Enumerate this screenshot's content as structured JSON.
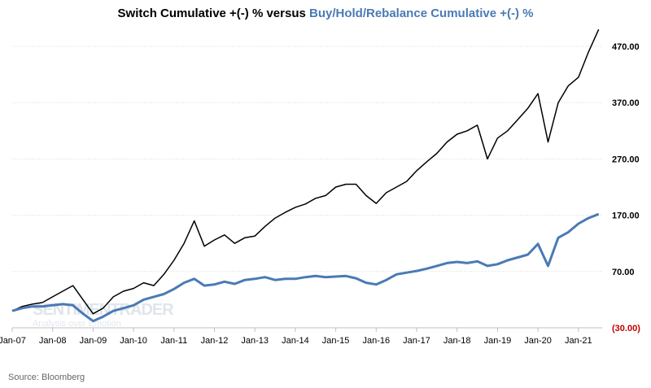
{
  "chart_data": {
    "type": "line",
    "title_part1": "Switch Cumulative +(-) % versus ",
    "title_part2": "Buy/Hold/Rebalance Cumulative +(-) %",
    "source": "Source: Bloomberg",
    "watermark": "SENTIMENTRADER",
    "watermark_sub": "Analysis over Emotion",
    "ylim": [
      -30,
      470
    ],
    "y_ticks": [
      470,
      370,
      270,
      170,
      70,
      -30
    ],
    "y_tick_labels": [
      "470.00",
      "370.00",
      "270.00",
      "170.00",
      "70.00",
      "(30.00)"
    ],
    "negative_label_color": "#c00000",
    "x_tick_labels": [
      "Jan-07",
      "Jan-08",
      "Jan-09",
      "Jan-10",
      "Jan-11",
      "Jan-12",
      "Jan-13",
      "Jan-14",
      "Jan-15",
      "Jan-16",
      "Jan-17",
      "Jan-18",
      "Jan-19",
      "Jan-20",
      "Jan-21"
    ],
    "x_start": "2007-01",
    "x_end": "2021-07",
    "x_dates_quarterly_from": "2007-01",
    "grid": "horizontal dotted",
    "series": [
      {
        "color": "#000000",
        "values": [
          0,
          8,
          12,
          15,
          25,
          35,
          45,
          20,
          -5,
          5,
          25,
          35,
          40,
          50,
          45,
          65,
          90,
          120,
          160,
          115,
          126,
          135,
          120,
          130,
          133,
          150,
          165,
          175,
          184,
          190,
          200,
          205,
          220,
          225,
          225,
          205,
          191,
          210,
          220,
          230,
          249,
          265,
          280,
          300,
          314,
          320,
          330,
          270,
          307,
          320,
          340,
          360,
          386,
          300,
          370,
          400,
          415,
          460,
          500
        ]
      },
      {
        "color": "#4a7ab5",
        "values": [
          0,
          5,
          8,
          8,
          10,
          12,
          10,
          -5,
          -18,
          -10,
          0,
          5,
          10,
          20,
          25,
          30,
          39,
          50,
          57,
          45,
          47,
          52,
          48,
          55,
          57,
          60,
          55,
          57,
          57,
          60,
          62,
          60,
          61,
          62,
          58,
          50,
          47,
          55,
          65,
          68,
          71,
          75,
          80,
          85,
          87,
          85,
          88,
          80,
          83,
          90,
          95,
          100,
          119,
          80,
          130,
          140,
          155,
          165,
          172
        ]
      }
    ]
  }
}
